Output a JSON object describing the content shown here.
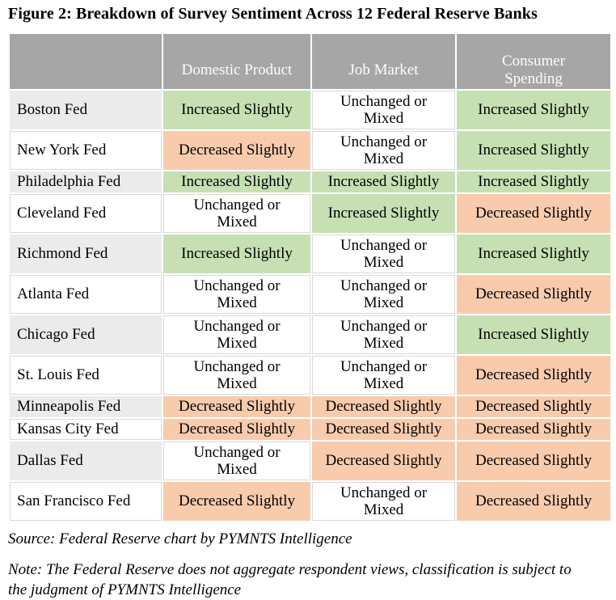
{
  "title": "Figure 2: Breakdown of Survey Sentiment Across 12 Federal Reserve Banks",
  "chart_data": {
    "type": "table",
    "title": "Breakdown of Survey Sentiment Across 12 Federal Reserve Banks",
    "columns": [
      "Domestic Product",
      "Job Market",
      "Consumer Spending"
    ],
    "rows": [
      {
        "bank": "Boston Fed",
        "values": [
          "Increased Slightly",
          "Unchanged or\nMixed",
          "Increased Slightly"
        ]
      },
      {
        "bank": "New York Fed",
        "values": [
          "Decreased Slightly",
          "Unchanged or\nMixed",
          "Increased Slightly"
        ]
      },
      {
        "bank": "Philadelphia Fed",
        "values": [
          "Increased Slightly",
          "Increased Slightly",
          "Increased Slightly"
        ]
      },
      {
        "bank": "Cleveland Fed",
        "values": [
          "Unchanged or\nMixed",
          "Increased Slightly",
          "Decreased Slightly"
        ]
      },
      {
        "bank": "Richmond Fed",
        "values": [
          "Increased Slightly",
          "Unchanged or\nMixed",
          "Increased Slightly"
        ]
      },
      {
        "bank": "Atlanta Fed",
        "values": [
          "Unchanged or\nMixed",
          "Unchanged or\nMixed",
          "Decreased Slightly"
        ]
      },
      {
        "bank": "Chicago Fed",
        "values": [
          "Unchanged or\nMixed",
          "Unchanged or\nMixed",
          "Increased Slightly"
        ]
      },
      {
        "bank": "St. Louis Fed",
        "values": [
          "Unchanged or\nMixed",
          "Unchanged or\nMixed",
          "Decreased Slightly"
        ]
      },
      {
        "bank": "Minneapolis Fed",
        "values": [
          "Decreased Slightly",
          "Decreased Slightly",
          "Decreased Slightly"
        ]
      },
      {
        "bank": "Kansas City Fed",
        "values": [
          "Decreased Slightly",
          "Decreased Slightly",
          "Decreased Slightly"
        ]
      },
      {
        "bank": "Dallas Fed",
        "values": [
          "Unchanged or\nMixed",
          "Decreased Slightly",
          "Decreased Slightly"
        ]
      },
      {
        "bank": "San Francisco Fed",
        "values": [
          "Decreased Slightly",
          "Unchanged or\nMixed",
          "Decreased Slightly"
        ]
      }
    ],
    "legend": {
      "Increased Slightly": "#c6e0b4",
      "Unchanged or Mixed": "#ffffff",
      "Decreased Slightly": "#f8cbad"
    }
  },
  "colors": {
    "header_bg": "#a6a6a6",
    "header_text": "#fdfdfd",
    "row_label_alt_bg": "#ebebeb",
    "cell_border": "#d9d9d9",
    "increased_bg": "#c6e0b4",
    "unchanged_bg": "#ffffff",
    "decreased_bg": "#f8cbad"
  },
  "footer": {
    "source": "Source: Federal Reserve chart by PYMNTS Intelligence",
    "note": "Note: The Federal Reserve does not aggregate respondent views, classification is subject to the judgment of PYMNTS Intelligence"
  }
}
